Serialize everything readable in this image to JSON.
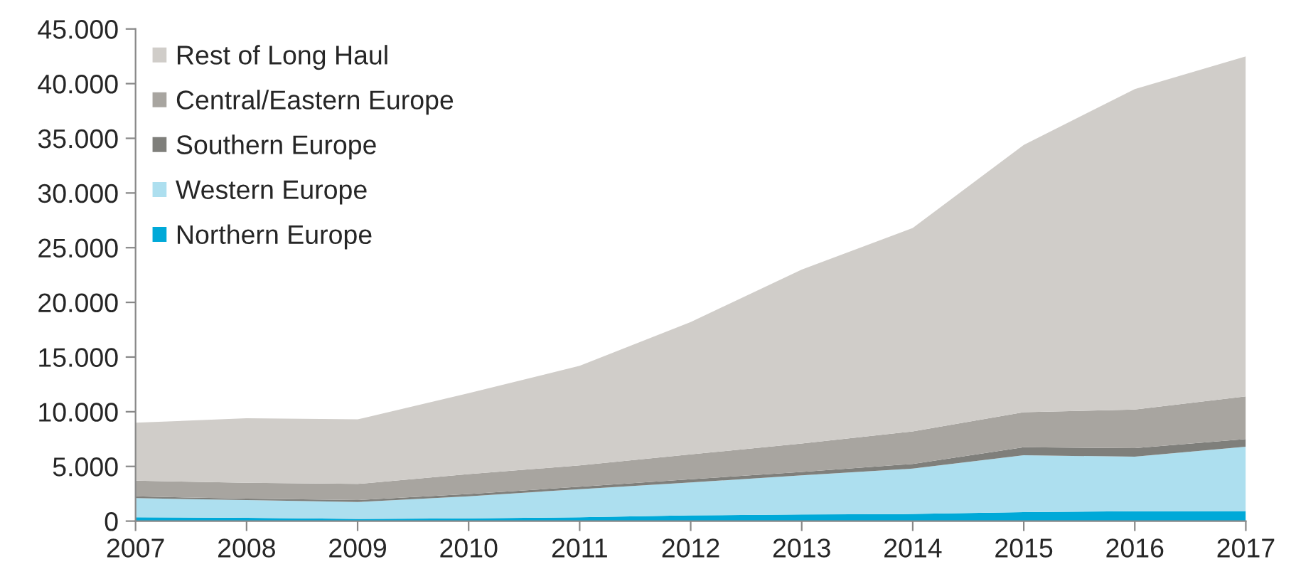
{
  "chart_data": {
    "type": "area",
    "stacked": true,
    "x": [
      2007,
      2008,
      2009,
      2010,
      2011,
      2012,
      2013,
      2014,
      2015,
      2016,
      2017
    ],
    "series": [
      {
        "name": "Northern Europe",
        "color": "#00a9d8",
        "values": [
          350,
          300,
          200,
          250,
          350,
          520,
          600,
          650,
          820,
          900,
          920
        ]
      },
      {
        "name": "Western Europe",
        "color": "#addfef",
        "values": [
          1750,
          1620,
          1540,
          2020,
          2570,
          3010,
          3590,
          4150,
          5200,
          4990,
          5880
        ]
      },
      {
        "name": "Southern Europe",
        "color": "#7f7f7b",
        "values": [
          160,
          130,
          180,
          210,
          220,
          300,
          300,
          430,
          740,
          780,
          700
        ]
      },
      {
        "name": "Central/Eastern Europe",
        "color": "#a8a5a0",
        "values": [
          1440,
          1450,
          1480,
          1820,
          1960,
          2270,
          2610,
          2970,
          3190,
          3530,
          3900
        ]
      },
      {
        "name": "Rest of Long Haul",
        "color": "#d0cdc9",
        "values": [
          5300,
          5900,
          5900,
          7400,
          9100,
          12100,
          15900,
          18600,
          24450,
          29300,
          31100
        ]
      }
    ],
    "xlim": [
      2007,
      2017
    ],
    "xticks": [
      2007,
      2008,
      2009,
      2010,
      2011,
      2012,
      2013,
      2014,
      2015,
      2016,
      2017
    ],
    "ylim": [
      0,
      45000
    ],
    "yticks": [
      {
        "value": 0,
        "label": "0"
      },
      {
        "value": 5000,
        "label": "5.000"
      },
      {
        "value": 10000,
        "label": "10.000"
      },
      {
        "value": 15000,
        "label": "15.000"
      },
      {
        "value": 20000,
        "label": "20.000"
      },
      {
        "value": 25000,
        "label": "25.000"
      },
      {
        "value": 30000,
        "label": "30.000"
      },
      {
        "value": 35000,
        "label": "35.000"
      },
      {
        "value": 40000,
        "label": "40.000"
      },
      {
        "value": 45000,
        "label": "45.000"
      }
    ],
    "legend": "top left",
    "grid": false
  }
}
